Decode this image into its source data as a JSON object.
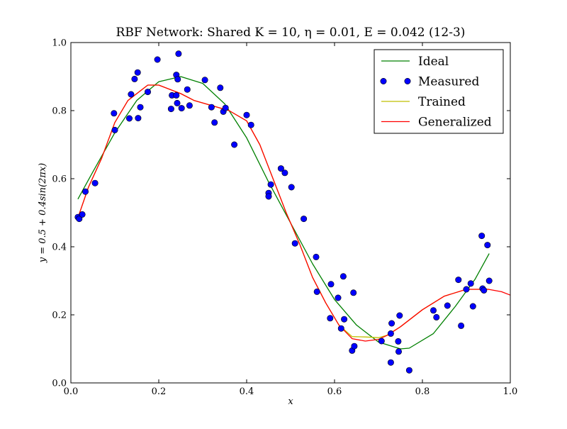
{
  "chart_data": {
    "type": "line",
    "title": "RBF Network: Shared K = 10, η = 0.01, E = 0.042 (12-3)",
    "xlabel": "x",
    "ylabel": "y = 0.5 + 0.4sin(2πx)",
    "xlim": [
      0.0,
      1.0
    ],
    "ylim": [
      0.0,
      1.0
    ],
    "x_ticks": [
      "0.0",
      "0.2",
      "0.4",
      "0.6",
      "0.8",
      "1.0"
    ],
    "y_ticks": [
      "0.0",
      "0.2",
      "0.4",
      "0.6",
      "0.8",
      "1.0"
    ],
    "grid": false,
    "legend_position": "top-right",
    "colors": {
      "ideal": "#008000",
      "measured_fill": "#0000ff",
      "measured_edge": "#000000",
      "trained": "#bfbf00",
      "generalized": "#ff0000"
    },
    "series": [
      {
        "name": "Ideal",
        "kind": "line",
        "points": [
          [
            0.016,
            0.54
          ],
          [
            0.05,
            0.62
          ],
          [
            0.1,
            0.735
          ],
          [
            0.15,
            0.83
          ],
          [
            0.2,
            0.885
          ],
          [
            0.25,
            0.9
          ],
          [
            0.3,
            0.88
          ],
          [
            0.35,
            0.82
          ],
          [
            0.4,
            0.72
          ],
          [
            0.45,
            0.59
          ],
          [
            0.5,
            0.47
          ],
          [
            0.55,
            0.35
          ],
          [
            0.6,
            0.245
          ],
          [
            0.65,
            0.17
          ],
          [
            0.7,
            0.12
          ],
          [
            0.75,
            0.1
          ],
          [
            0.77,
            0.102
          ],
          [
            0.825,
            0.145
          ],
          [
            0.875,
            0.225
          ],
          [
            0.92,
            0.305
          ],
          [
            0.952,
            0.38
          ]
        ]
      },
      {
        "name": "Measured",
        "kind": "scatter",
        "points": [
          [
            0.016,
            0.487
          ],
          [
            0.019,
            0.482
          ],
          [
            0.026,
            0.495
          ],
          [
            0.033,
            0.562
          ],
          [
            0.055,
            0.587
          ],
          [
            0.098,
            0.792
          ],
          [
            0.1,
            0.743
          ],
          [
            0.133,
            0.777
          ],
          [
            0.137,
            0.848
          ],
          [
            0.145,
            0.893
          ],
          [
            0.152,
            0.912
          ],
          [
            0.153,
            0.778
          ],
          [
            0.158,
            0.81
          ],
          [
            0.175,
            0.855
          ],
          [
            0.197,
            0.95
          ],
          [
            0.228,
            0.805
          ],
          [
            0.23,
            0.845
          ],
          [
            0.24,
            0.845
          ],
          [
            0.24,
            0.905
          ],
          [
            0.242,
            0.822
          ],
          [
            0.243,
            0.892
          ],
          [
            0.245,
            0.967
          ],
          [
            0.252,
            0.807
          ],
          [
            0.265,
            0.862
          ],
          [
            0.27,
            0.815
          ],
          [
            0.305,
            0.89
          ],
          [
            0.32,
            0.81
          ],
          [
            0.327,
            0.765
          ],
          [
            0.34,
            0.867
          ],
          [
            0.347,
            0.797
          ],
          [
            0.352,
            0.808
          ],
          [
            0.372,
            0.7
          ],
          [
            0.4,
            0.787
          ],
          [
            0.41,
            0.758
          ],
          [
            0.45,
            0.558
          ],
          [
            0.45,
            0.548
          ],
          [
            0.455,
            0.583
          ],
          [
            0.478,
            0.63
          ],
          [
            0.487,
            0.617
          ],
          [
            0.502,
            0.575
          ],
          [
            0.51,
            0.41
          ],
          [
            0.53,
            0.482
          ],
          [
            0.558,
            0.37
          ],
          [
            0.56,
            0.268
          ],
          [
            0.59,
            0.19
          ],
          [
            0.592,
            0.29
          ],
          [
            0.608,
            0.25
          ],
          [
            0.615,
            0.16
          ],
          [
            0.62,
            0.313
          ],
          [
            0.622,
            0.187
          ],
          [
            0.64,
            0.095
          ],
          [
            0.643,
            0.265
          ],
          [
            0.645,
            0.108
          ],
          [
            0.707,
            0.123
          ],
          [
            0.728,
            0.06
          ],
          [
            0.728,
            0.145
          ],
          [
            0.73,
            0.175
          ],
          [
            0.745,
            0.122
          ],
          [
            0.746,
            0.092
          ],
          [
            0.748,
            0.198
          ],
          [
            0.77,
            0.037
          ],
          [
            0.825,
            0.213
          ],
          [
            0.832,
            0.193
          ],
          [
            0.857,
            0.227
          ],
          [
            0.882,
            0.303
          ],
          [
            0.888,
            0.168
          ],
          [
            0.9,
            0.275
          ],
          [
            0.91,
            0.292
          ],
          [
            0.915,
            0.225
          ],
          [
            0.935,
            0.432
          ],
          [
            0.937,
            0.277
          ],
          [
            0.94,
            0.272
          ],
          [
            0.948,
            0.405
          ],
          [
            0.952,
            0.3
          ]
        ]
      },
      {
        "name": "Trained",
        "kind": "line",
        "points": [
          [
            0.016,
            0.485
          ],
          [
            0.04,
            0.575
          ],
          [
            0.07,
            0.66
          ],
          [
            0.1,
            0.765
          ],
          [
            0.13,
            0.83
          ],
          [
            0.175,
            0.875
          ],
          [
            0.2,
            0.875
          ],
          [
            0.25,
            0.85
          ],
          [
            0.28,
            0.83
          ],
          [
            0.32,
            0.815
          ],
          [
            0.36,
            0.8
          ],
          [
            0.4,
            0.77
          ],
          [
            0.43,
            0.7
          ],
          [
            0.46,
            0.6
          ],
          [
            0.49,
            0.5
          ],
          [
            0.52,
            0.41
          ],
          [
            0.55,
            0.31
          ],
          [
            0.58,
            0.235
          ],
          [
            0.61,
            0.17
          ],
          [
            0.64,
            0.136
          ],
          [
            0.67,
            0.135
          ],
          [
            0.7,
            0.133
          ],
          [
            0.72,
            0.14
          ],
          [
            0.75,
            0.165
          ],
          [
            0.8,
            0.215
          ],
          [
            0.85,
            0.255
          ],
          [
            0.9,
            0.275
          ],
          [
            0.952,
            0.275
          ]
        ]
      },
      {
        "name": "Generalized",
        "kind": "line",
        "points": [
          [
            0.016,
            0.485
          ],
          [
            0.04,
            0.575
          ],
          [
            0.07,
            0.66
          ],
          [
            0.1,
            0.765
          ],
          [
            0.13,
            0.83
          ],
          [
            0.175,
            0.875
          ],
          [
            0.2,
            0.875
          ],
          [
            0.25,
            0.85
          ],
          [
            0.28,
            0.83
          ],
          [
            0.32,
            0.815
          ],
          [
            0.36,
            0.8
          ],
          [
            0.4,
            0.77
          ],
          [
            0.43,
            0.7
          ],
          [
            0.46,
            0.6
          ],
          [
            0.49,
            0.5
          ],
          [
            0.52,
            0.41
          ],
          [
            0.55,
            0.31
          ],
          [
            0.58,
            0.235
          ],
          [
            0.61,
            0.17
          ],
          [
            0.64,
            0.13
          ],
          [
            0.67,
            0.123
          ],
          [
            0.7,
            0.128
          ],
          [
            0.72,
            0.14
          ],
          [
            0.75,
            0.165
          ],
          [
            0.8,
            0.215
          ],
          [
            0.85,
            0.255
          ],
          [
            0.9,
            0.275
          ],
          [
            0.95,
            0.275
          ],
          [
            0.98,
            0.268
          ],
          [
            1.0,
            0.258
          ]
        ]
      }
    ]
  }
}
